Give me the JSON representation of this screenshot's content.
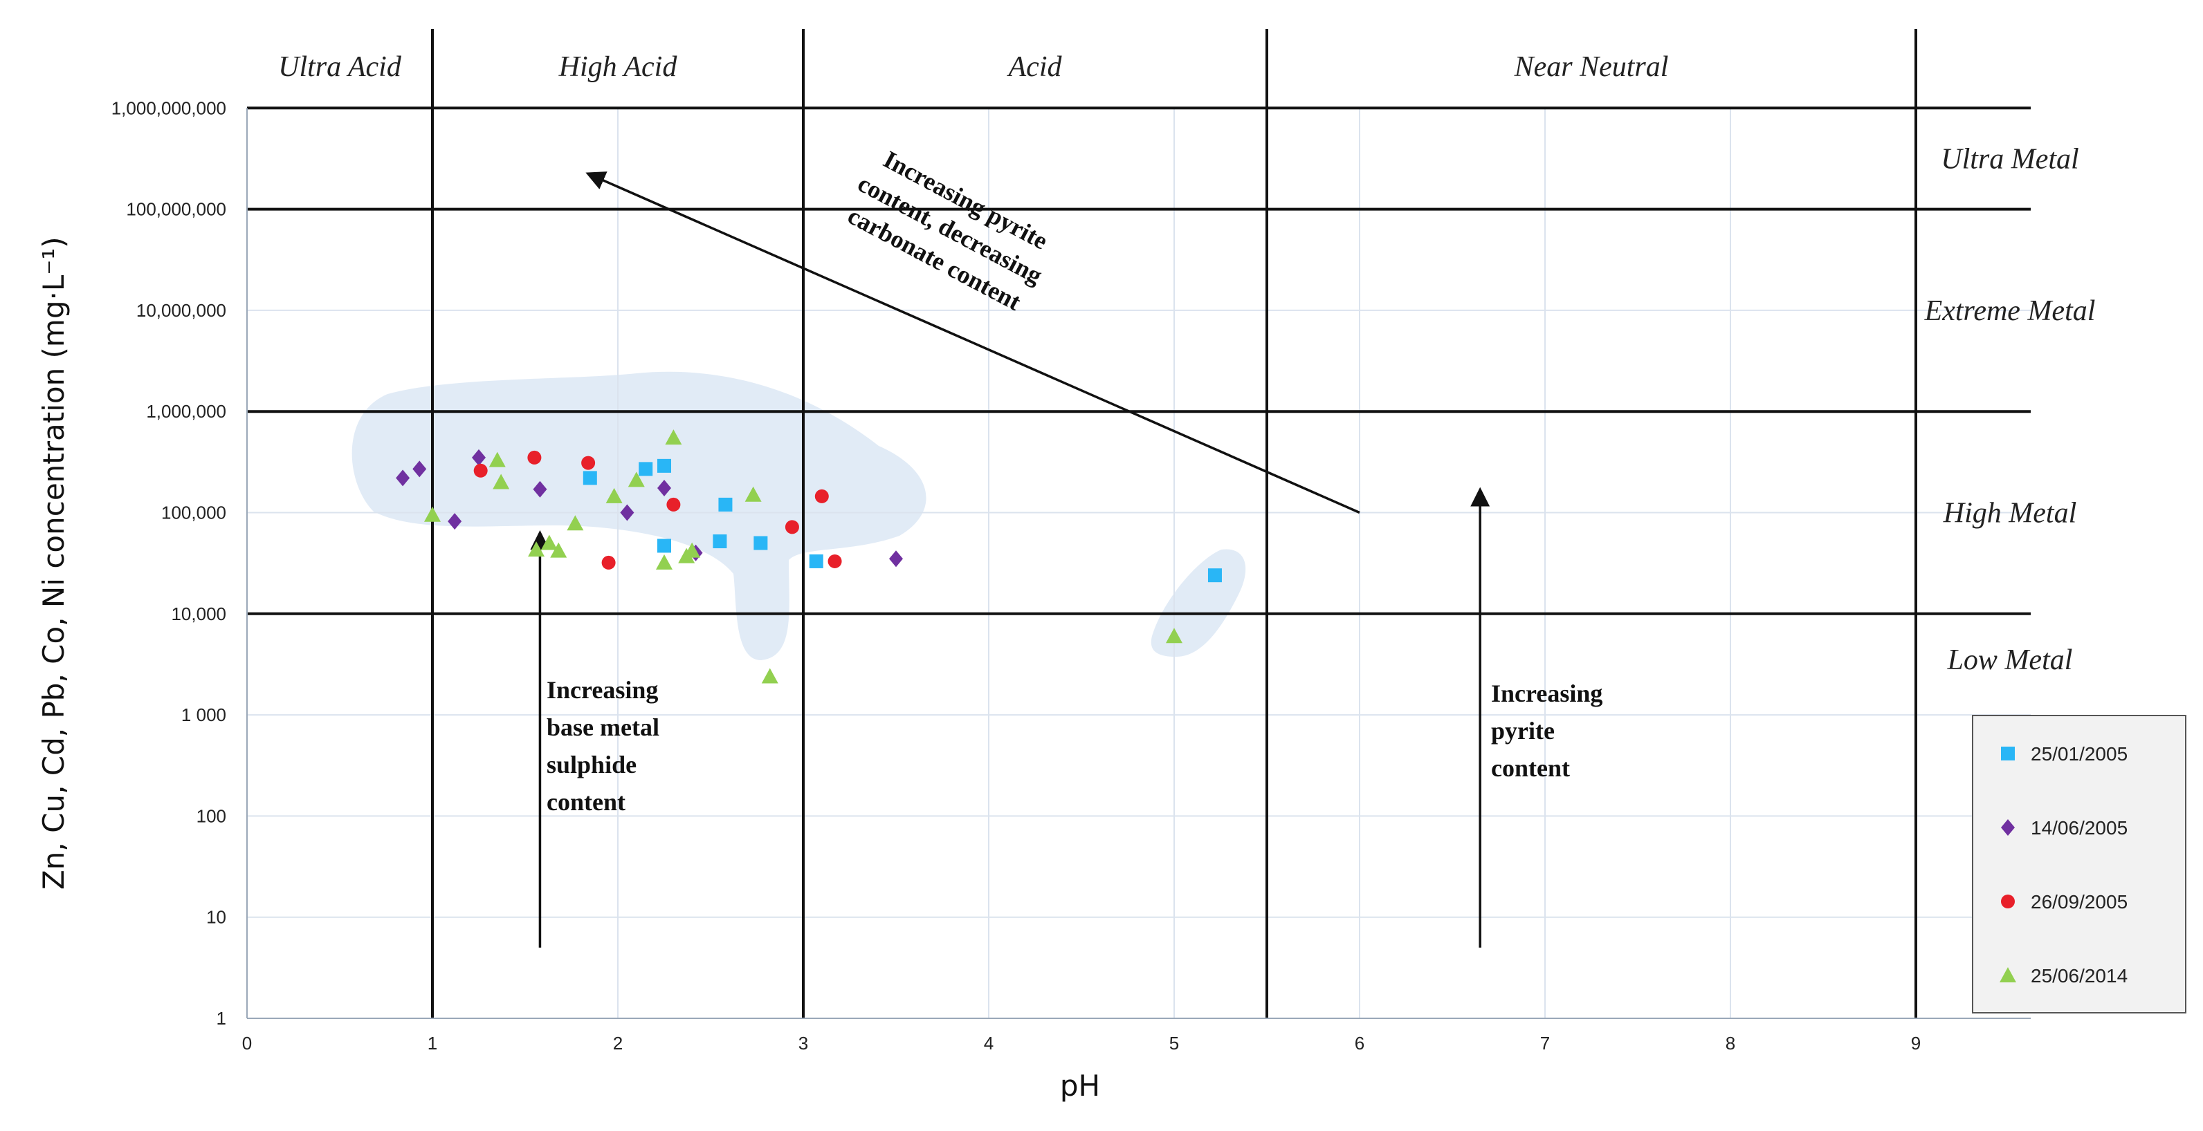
{
  "chart_data": {
    "type": "scatter",
    "title": "",
    "xlabel": "pH",
    "ylabel": "Zn, Cu, Cd, Pb, Co, Ni concentration (mg·L⁻¹)",
    "xlim": [
      0,
      9.5
    ],
    "ylim": [
      1,
      1000000000
    ],
    "yscale": "log",
    "x_ticks": [
      "0",
      "1",
      "2",
      "3",
      "4",
      "5",
      "6",
      "7",
      "8",
      "9"
    ],
    "y_ticks": [
      "1",
      "10",
      "100",
      "1 000",
      "10,000",
      "100,000",
      "1,000,000",
      "10,000,000",
      "100,000,000",
      "1,000,000,000"
    ],
    "grid": true,
    "legend_position": "bottom-right",
    "ph_zones": [
      {
        "label": "Ultra Acid",
        "from": 0,
        "to": 1
      },
      {
        "label": "High Acid",
        "from": 1,
        "to": 3
      },
      {
        "label": "Acid",
        "from": 3,
        "to": 5.5
      },
      {
        "label": "Near Neutral",
        "from": 5.5,
        "to": 9
      }
    ],
    "metal_zones": [
      {
        "label": "Ultra Metal",
        "from": 100000000,
        "to": 1000000000
      },
      {
        "label": "Extreme Metal",
        "from": 1000000,
        "to": 100000000
      },
      {
        "label": "High Metal",
        "from": 10000,
        "to": 1000000
      },
      {
        "label": "Low Metal",
        "from": 1,
        "to": 10000
      }
    ],
    "annotations": [
      {
        "lines": [
          "Increasing pyrite",
          "content, decreasing",
          "carbonate content"
        ],
        "arrow_from": [
          6.0,
          100000
        ],
        "arrow_to": [
          1.85,
          220000000
        ]
      },
      {
        "lines": [
          "Increasing",
          "base metal",
          "sulphide",
          "content"
        ],
        "arrow_from": [
          1.58,
          5
        ],
        "arrow_to": [
          1.58,
          60000
        ]
      },
      {
        "lines": [
          "Increasing",
          "pyrite",
          "content"
        ],
        "arrow_from": [
          6.65,
          5
        ],
        "arrow_to": [
          6.65,
          160000
        ]
      }
    ],
    "series": [
      {
        "name": "25/01/2005",
        "color": "#29b6f6",
        "marker": "square",
        "points": [
          [
            1.85,
            220000
          ],
          [
            2.15,
            270000
          ],
          [
            2.25,
            290000
          ],
          [
            2.58,
            120000
          ],
          [
            2.25,
            47000
          ],
          [
            2.55,
            52000
          ],
          [
            2.77,
            50000
          ],
          [
            3.07,
            33000
          ],
          [
            5.22,
            24000
          ]
        ]
      },
      {
        "name": "14/06/2005",
        "color": "#7030a0",
        "marker": "diamond",
        "points": [
          [
            0.84,
            220000
          ],
          [
            0.93,
            270000
          ],
          [
            1.12,
            82000
          ],
          [
            1.25,
            350000
          ],
          [
            1.58,
            170000
          ],
          [
            2.05,
            100000
          ],
          [
            2.25,
            175000
          ],
          [
            2.42,
            40000
          ],
          [
            3.5,
            35000
          ]
        ]
      },
      {
        "name": "26/09/2005",
        "color": "#e8202a",
        "marker": "circle",
        "points": [
          [
            1.26,
            260000
          ],
          [
            1.55,
            350000
          ],
          [
            1.84,
            310000
          ],
          [
            1.95,
            32000
          ],
          [
            2.3,
            120000
          ],
          [
            2.94,
            72000
          ],
          [
            3.1,
            145000
          ],
          [
            3.17,
            33000
          ]
        ]
      },
      {
        "name": "25/06/2014",
        "color": "#92d050",
        "marker": "triangle",
        "points": [
          [
            1.35,
            330000
          ],
          [
            1.37,
            200000
          ],
          [
            1.56,
            43000
          ],
          [
            1.63,
            50000
          ],
          [
            1.68,
            42000
          ],
          [
            1.77,
            78000
          ],
          [
            1.98,
            145000
          ],
          [
            2.1,
            210000
          ],
          [
            2.25,
            32000
          ],
          [
            2.3,
            550000
          ],
          [
            2.37,
            37000
          ],
          [
            2.4,
            42000
          ],
          [
            2.73,
            150000
          ],
          [
            2.82,
            2400
          ],
          [
            5.0,
            6000
          ],
          [
            1.0,
            95000
          ]
        ]
      }
    ]
  }
}
